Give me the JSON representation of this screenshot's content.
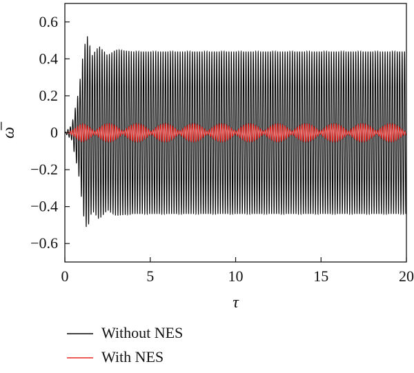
{
  "chart_data": {
    "type": "line",
    "xlabel": "τ",
    "ylabel": "ω̅",
    "xlim": [
      0,
      20
    ],
    "ylim": [
      -0.7,
      0.7
    ],
    "xticks": [
      0,
      5,
      10,
      15,
      20
    ],
    "yticks": [
      -0.6,
      -0.4,
      -0.2,
      0,
      0.2,
      0.4,
      0.6
    ],
    "xtick_labels": [
      "0",
      "5",
      "10",
      "15",
      "20"
    ],
    "ytick_labels": [
      "−0.6",
      "−0.4",
      "−0.2",
      "0",
      "0.2",
      "0.4",
      "0.6"
    ],
    "grid": false,
    "legend_position": "below",
    "series": [
      {
        "name": "Without NES",
        "color": "#000000",
        "description": "oscillation with transient overshoot peaking near 0.53 at τ≈1.3, settling to steady amplitude ≈0.44",
        "envelope_points": [
          [
            0,
            0
          ],
          [
            0.4,
            0.04
          ],
          [
            0.8,
            0.22
          ],
          [
            1.1,
            0.45
          ],
          [
            1.3,
            0.53
          ],
          [
            1.6,
            0.42
          ],
          [
            2.0,
            0.47
          ],
          [
            2.5,
            0.42
          ],
          [
            3.0,
            0.45
          ],
          [
            4.0,
            0.44
          ],
          [
            20,
            0.44
          ]
        ]
      },
      {
        "name": "With NES",
        "color": "#e8231f",
        "description": "small beating oscillation with amplitude ≈0.05, beat period ≈1.65",
        "envelope_points": [
          [
            0,
            0
          ],
          [
            1.0,
            0.05
          ],
          [
            20,
            0.05
          ]
        ]
      }
    ]
  },
  "legend": {
    "items": [
      {
        "label": "Without NES",
        "color": "#000000"
      },
      {
        "label": "With NES",
        "color": "#e8231f"
      }
    ]
  }
}
